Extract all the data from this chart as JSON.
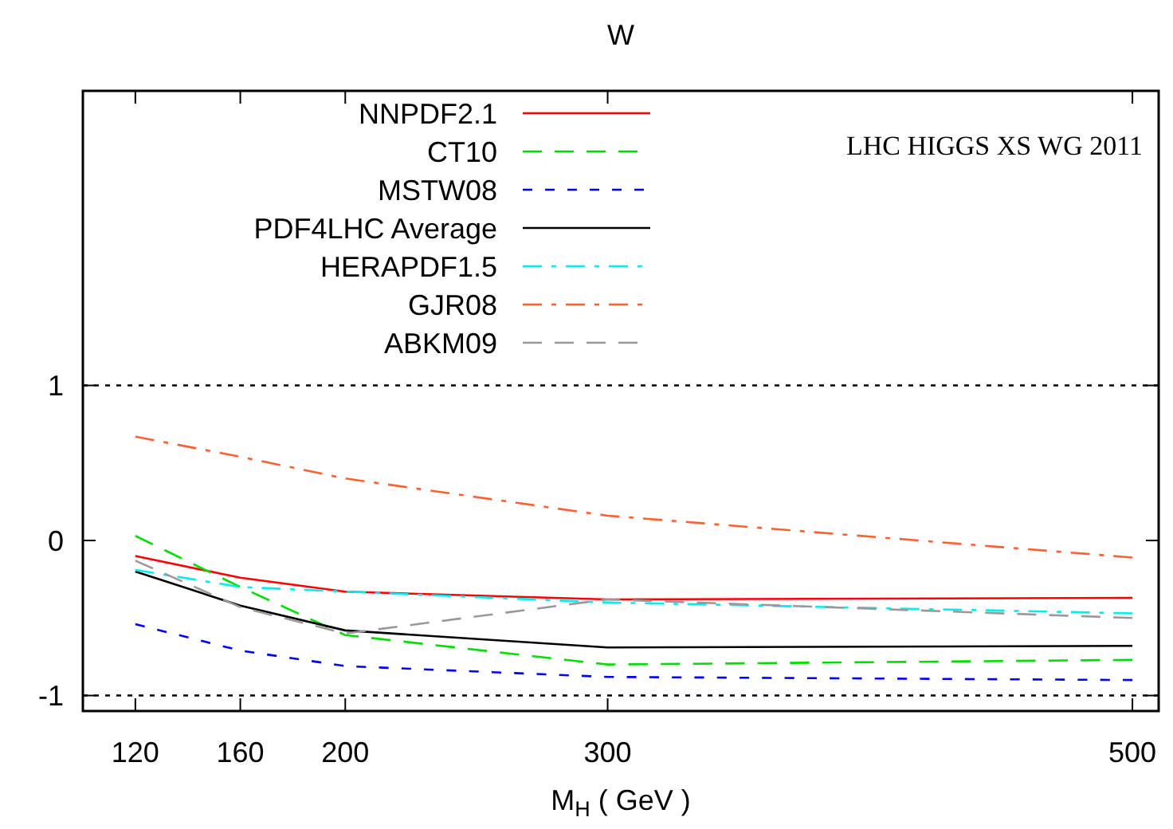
{
  "chart_data": {
    "type": "line",
    "title": "W",
    "xlabel": "M$_{H}$ ( GeV )",
    "annotations": [
      "LHC HIGGS XS WG 2011"
    ],
    "x": [
      120,
      160,
      200,
      300,
      500
    ],
    "xlim": [
      100,
      510
    ],
    "xticks": [
      120,
      160,
      200,
      300,
      500
    ],
    "ylim": [
      -1.1,
      2.9
    ],
    "yticks": [
      -1,
      0,
      1
    ],
    "grid": false,
    "legend": "top left",
    "marker": "none",
    "ref_lines": [
      {
        "axis": "y",
        "value": 1,
        "color": "#000000",
        "line_style": "dotted"
      },
      {
        "axis": "y",
        "value": -1,
        "color": "#000000",
        "line_style": "dotted"
      }
    ],
    "series": [
      {
        "name": "NNPDF2.1",
        "color": "#ff0000",
        "line_style": "solid",
        "values": [
          -0.1,
          -0.24,
          -0.33,
          -0.38,
          -0.37
        ]
      },
      {
        "name": "CT10",
        "color": "#00dd00",
        "line_style": "dashed",
        "values": [
          0.03,
          -0.3,
          -0.61,
          -0.8,
          -0.77
        ]
      },
      {
        "name": "MSTW08",
        "color": "#0000ff",
        "line_style": "dotted",
        "values": [
          -0.54,
          -0.71,
          -0.81,
          -0.88,
          -0.9
        ]
      },
      {
        "name": "PDF4LHC Average",
        "color": "#000000",
        "line_style": "solid",
        "values": [
          -0.2,
          -0.42,
          -0.58,
          -0.69,
          -0.68
        ]
      },
      {
        "name": "HERAPDF1.5",
        "color": "#00eeee",
        "line_style": "dashdot",
        "values": [
          -0.19,
          -0.3,
          -0.33,
          -0.4,
          -0.47
        ]
      },
      {
        "name": "GJR08",
        "color": "#ff6030",
        "line_style": "dashdot",
        "values": [
          0.67,
          0.54,
          0.4,
          0.16,
          -0.11
        ]
      },
      {
        "name": "ABKM09",
        "color": "#999999",
        "line_style": "dashed",
        "values": [
          -0.13,
          -0.43,
          -0.6,
          -0.38,
          -0.5
        ]
      }
    ]
  }
}
